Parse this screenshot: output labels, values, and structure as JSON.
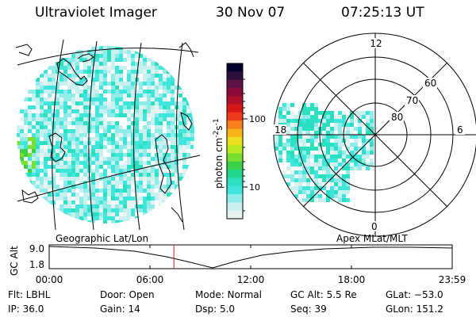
{
  "header": {
    "instrument": "Ultraviolet Imager",
    "date": "30 Nov 07",
    "time": "07:25:13 UT"
  },
  "colorbar": {
    "unit_prefix": "photon cm",
    "exp_a": "-2",
    "mid": "s",
    "exp_b": "-1",
    "ticks": [
      "100",
      "10"
    ],
    "colors_top_to_bottom": [
      "#000030",
      "#2b0f3c",
      "#5a1248",
      "#8a0a3a",
      "#b0102a",
      "#d81818",
      "#f03a1c",
      "#f7801a",
      "#f8b51a",
      "#e8e020",
      "#b8ec20",
      "#7ae030",
      "#3ad048",
      "#20d88c",
      "#2ae0c0",
      "#40e6dc",
      "#90ece8",
      "#c8f0ee",
      "#e8f2f0"
    ]
  },
  "polar": {
    "mlt_labels": [
      "12",
      "18",
      "6",
      "0"
    ],
    "lat_labels": [
      "60",
      "70",
      "80"
    ]
  },
  "labels": {
    "geo": "Geographic Lat/Lon",
    "apex": "Apex MLat/MLT"
  },
  "timeline": {
    "ylabel": "GC Alt",
    "yticks": [
      "9.0",
      "1.8"
    ],
    "xticks": [
      "00:00",
      "06:00",
      "12:00",
      "18:00",
      "23:59"
    ],
    "marker_time": "07:25:13",
    "line_color": "#000000",
    "marker_color": "#cc2222"
  },
  "status": {
    "flt": "Flt: LBHL",
    "ip": "IP: 36.0",
    "door": "Door: Open",
    "gain": "Gain: 14",
    "mode": "Mode: Normal",
    "dsp": "Dsp:    5.0",
    "gcalt": "GC Alt: 5.5 Re",
    "seq": "Seq: 39",
    "glat": "GLat: −53.0",
    "glon": "GLon: 151.2"
  }
}
